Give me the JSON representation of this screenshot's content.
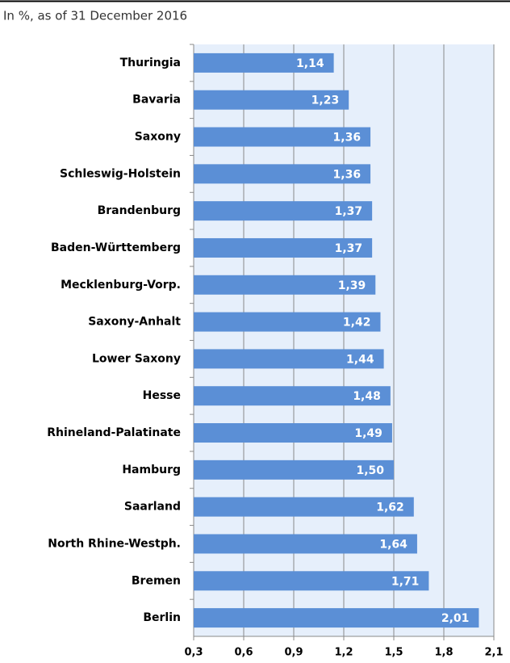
{
  "chart_data": {
    "type": "bar",
    "orientation": "horizontal",
    "subtitle": "In %, as of 31 December 2016",
    "categories": [
      "Thuringia",
      "Bavaria",
      "Saxony",
      "Schleswig-Holstein",
      "Brandenburg",
      "Baden-Württemberg",
      "Mecklenburg-Vorp.",
      "Saxony-Anhalt",
      "Lower Saxony",
      "Hesse",
      "Rhineland-Palatinate",
      "Hamburg",
      "Saarland",
      "North Rhine-Westph.",
      "Bremen",
      "Berlin"
    ],
    "values": [
      1.14,
      1.23,
      1.36,
      1.36,
      1.37,
      1.37,
      1.39,
      1.42,
      1.44,
      1.48,
      1.49,
      1.5,
      1.62,
      1.64,
      1.71,
      2.01
    ],
    "value_labels": [
      "1,14",
      "1,23",
      "1,36",
      "1,36",
      "1,37",
      "1,37",
      "1,39",
      "1,42",
      "1,44",
      "1,48",
      "1,49",
      "1,50",
      "1,62",
      "1,64",
      "1,71",
      "2,01"
    ],
    "color": "#5b8fd6",
    "xlim": [
      0.3,
      2.1
    ],
    "xticks": [
      {
        "value": 0.3,
        "label": "0,3"
      },
      {
        "value": 0.6,
        "label": "0,6"
      },
      {
        "value": 0.9,
        "label": "0,9"
      },
      {
        "value": 1.2,
        "label": "1,2"
      },
      {
        "value": 1.5,
        "label": "1,5"
      },
      {
        "value": 1.8,
        "label": "1,8"
      },
      {
        "value": 2.1,
        "label": "2,1"
      }
    ],
    "grid": true
  }
}
